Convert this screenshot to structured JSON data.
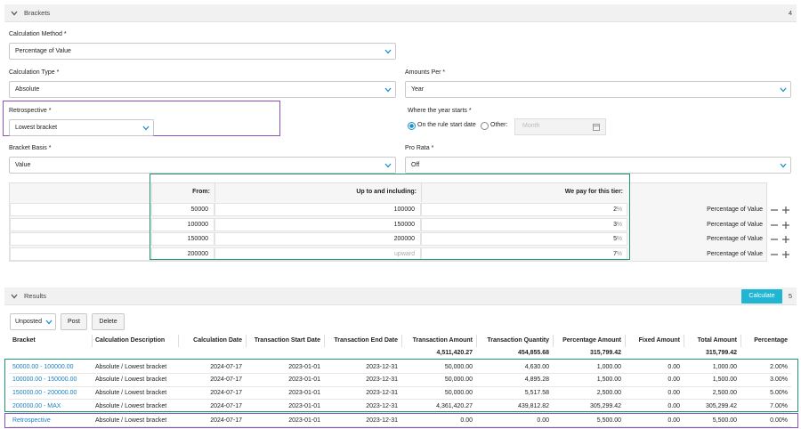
{
  "brackets_section": {
    "title": "Brackets",
    "count": "4",
    "fields": {
      "calculation_method": {
        "label": "Calculation Method *",
        "value": "Percentage of Value"
      },
      "calculation_type": {
        "label": "Calculation Type *",
        "value": "Absolute"
      },
      "amounts_per": {
        "label": "Amounts Per *",
        "value": "Year"
      },
      "retrospective": {
        "label": "Retrospective *",
        "value": "Lowest bracket"
      },
      "bracket_basis": {
        "label": "Bracket Basis *",
        "value": "Value"
      },
      "pro_rata": {
        "label": "Pro Rata *",
        "value": "Off"
      }
    },
    "year_start": {
      "label": "Where the year starts *",
      "options": [
        "On the rule start date",
        "Other:"
      ],
      "date_placeholder": "Month"
    },
    "table": {
      "headers": [
        "From:",
        "Up to and including:",
        "We pay for this tier:"
      ],
      "unit": "%",
      "rows": [
        {
          "from": "50000",
          "to": "100000",
          "pay": "2",
          "type": "Percentage of Value"
        },
        {
          "from": "100000",
          "to": "150000",
          "pay": "3",
          "type": "Percentage of Value"
        },
        {
          "from": "150000",
          "to": "200000",
          "pay": "5",
          "type": "Percentage of Value"
        },
        {
          "from": "200000",
          "to": "upward",
          "pay": "7",
          "type": "Percentage of Value"
        }
      ]
    }
  },
  "results_section": {
    "title": "Results",
    "count": "5",
    "calculate": "Calculate",
    "filter": "Unposted",
    "actions": [
      "Post",
      "Delete"
    ],
    "table": {
      "headers": [
        "Bracket",
        "Calculation Description",
        "Calculation Date",
        "Transaction Start Date",
        "Transaction End Date",
        "Transaction Amount",
        "Transaction Quantity",
        "Percentage Amount",
        "Fixed Amount",
        "Total Amount",
        "Percentage"
      ],
      "totals": [
        null,
        null,
        null,
        null,
        null,
        "4,511,420.27",
        "454,855.68",
        "315,799.42",
        null,
        "315,799.42",
        null
      ],
      "rows": [
        [
          "50000.00 - 100000.00",
          "Absolute / Lowest bracket",
          "2024-07-17",
          "2023-01-01",
          "2023-12-31",
          "50,000.00",
          "4,630.00",
          "1,000.00",
          "0.00",
          "1,000.00",
          "2.00%"
        ],
        [
          "100000.00 - 150000.00",
          "Absolute / Lowest bracket",
          "2024-07-17",
          "2023-01-01",
          "2023-12-31",
          "50,000.00",
          "4,895.28",
          "1,500.00",
          "0.00",
          "1,500.00",
          "3.00%"
        ],
        [
          "150000.00 - 200000.00",
          "Absolute / Lowest bracket",
          "2024-07-17",
          "2023-01-01",
          "2023-12-31",
          "50,000.00",
          "5,517.58",
          "2,500.00",
          "0.00",
          "2,500.00",
          "5.00%"
        ],
        [
          "200000.00 - MAX",
          "Absolute / Lowest bracket",
          "2024-07-17",
          "2023-01-01",
          "2023-12-31",
          "4,361,420.27",
          "439,812.82",
          "305,299.42",
          "0.00",
          "305,299.42",
          "7.00%"
        ],
        [
          "Retrospective",
          "Absolute / Lowest bracket",
          "2024-07-17",
          "2023-01-01",
          "2023-12-31",
          "0.00",
          "0.00",
          "5,500.00",
          "0.00",
          "5,500.00",
          "0.00%"
        ]
      ]
    }
  }
}
